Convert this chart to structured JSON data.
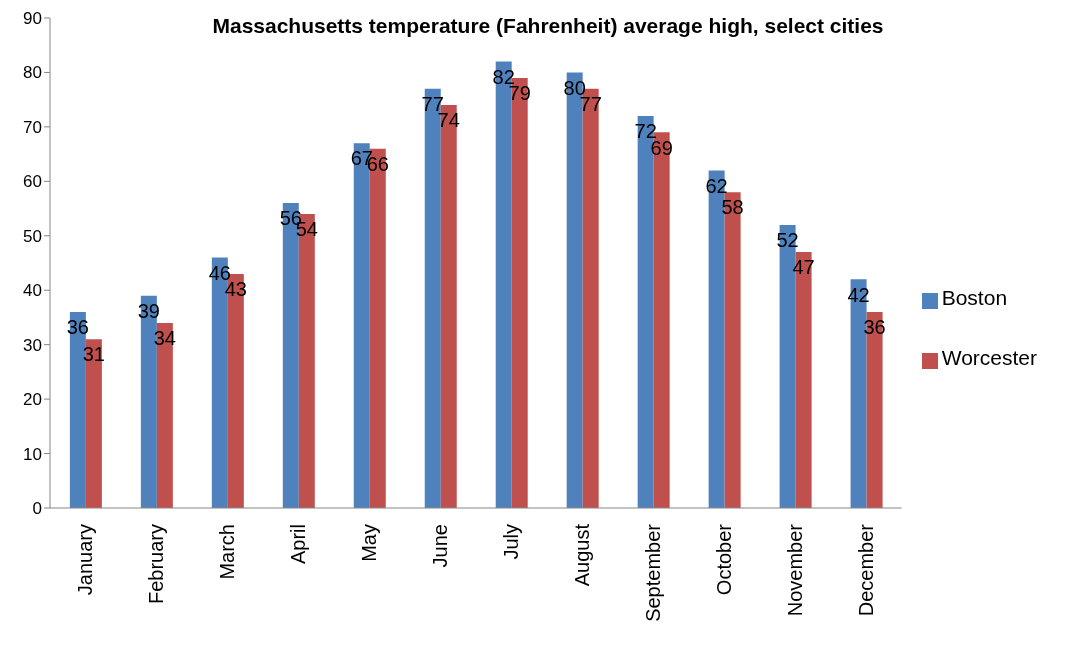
{
  "chart_data": {
    "type": "bar",
    "title": "Massachusetts  temperature (Fahrenheit) average high, select cities",
    "categories": [
      "January",
      "February",
      "March",
      "April",
      "May",
      "June",
      "July",
      "August",
      "September",
      "October",
      "November",
      "December"
    ],
    "series": [
      {
        "name": "Boston",
        "color": "#4f81bd",
        "values": [
          36,
          39,
          46,
          56,
          67,
          77,
          82,
          80,
          72,
          62,
          52,
          42
        ]
      },
      {
        "name": "Worcester",
        "color": "#c0504d",
        "values": [
          31,
          34,
          43,
          54,
          66,
          74,
          79,
          77,
          69,
          58,
          47,
          36
        ]
      }
    ],
    "ylim": [
      0,
      90
    ],
    "yticks": [
      0,
      10,
      20,
      30,
      40,
      50,
      60,
      70,
      80,
      90
    ],
    "grid": false,
    "legend": "right",
    "data_labels": true
  }
}
